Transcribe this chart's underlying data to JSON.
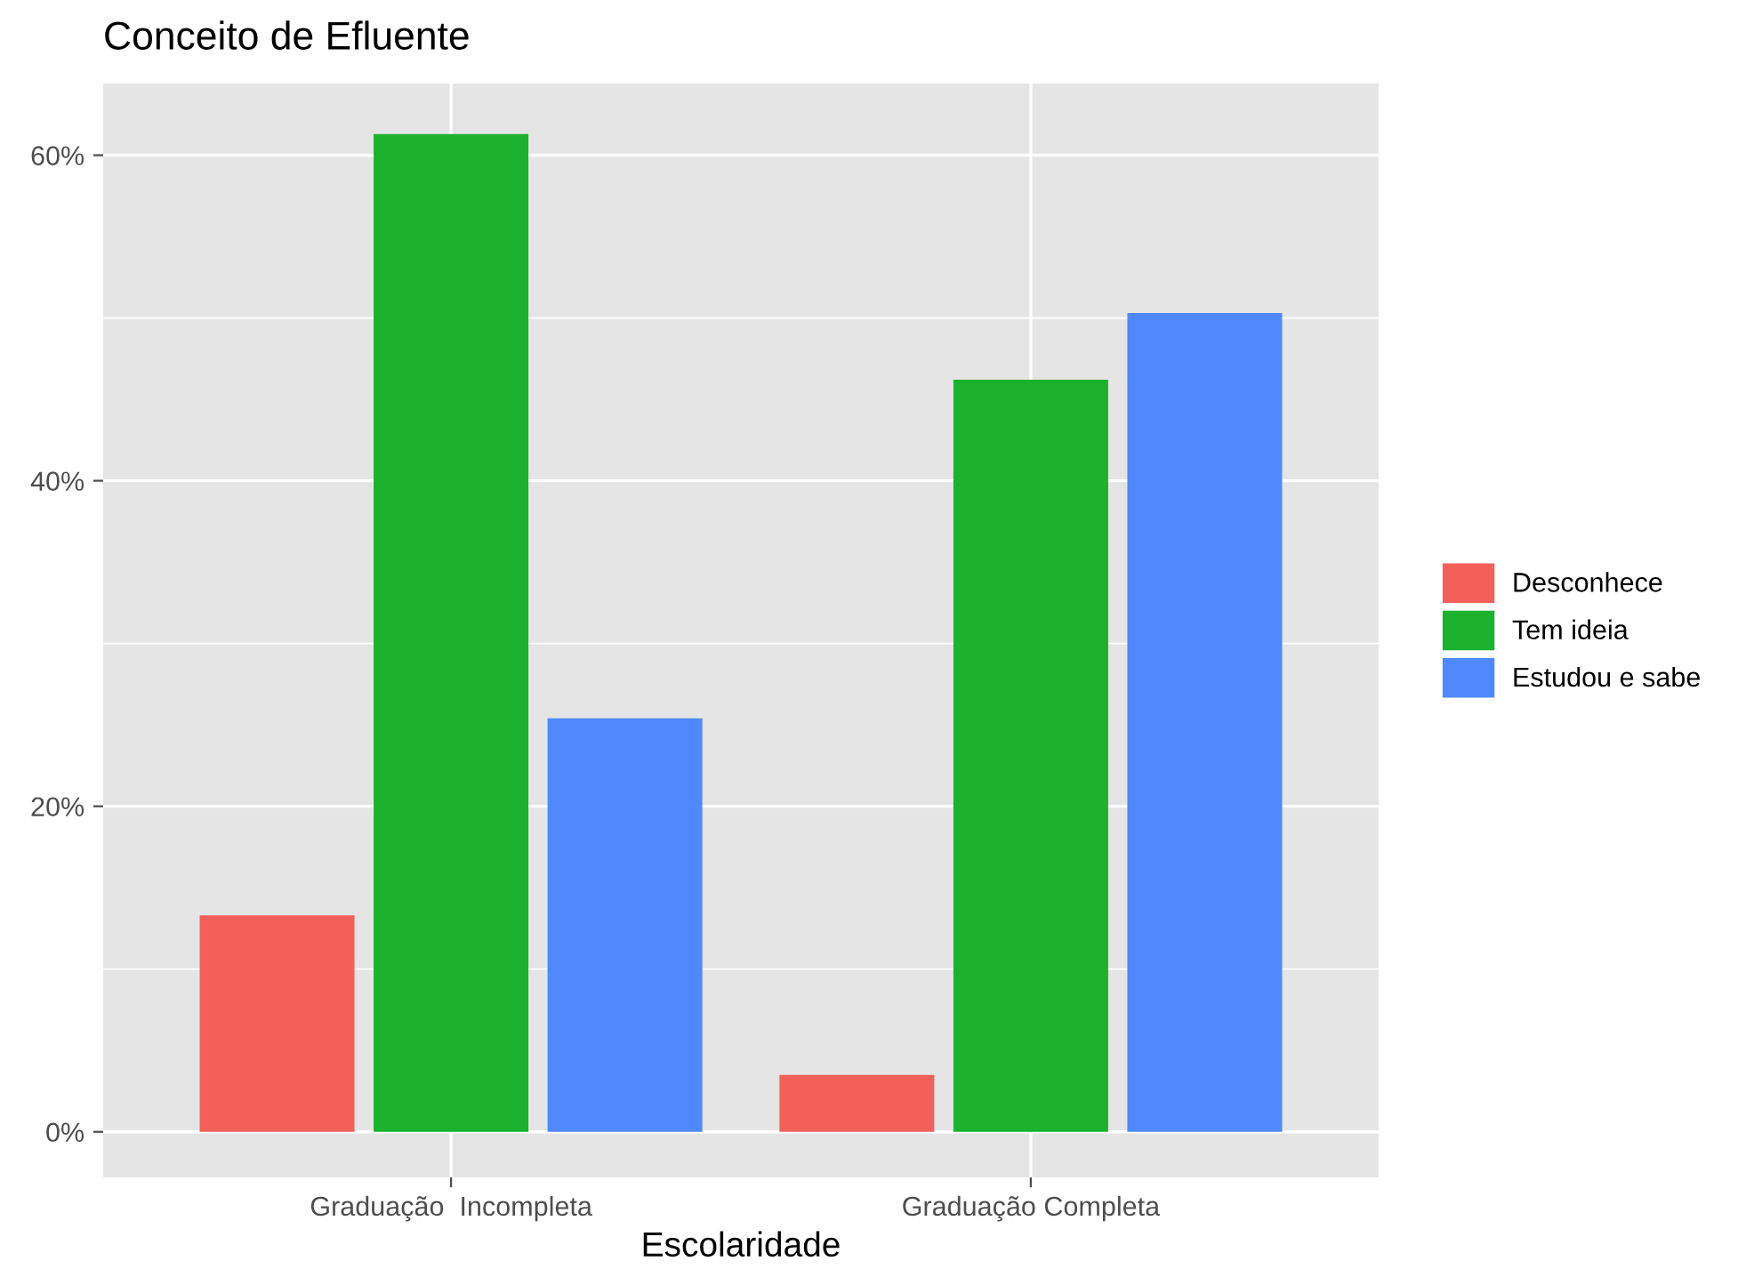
{
  "chart_data": {
    "type": "bar",
    "title": "Conceito de Efluente",
    "xlabel": "Escolaridade",
    "categories": [
      "Graduação  Incompleta",
      "Graduação Completa"
    ],
    "series": [
      {
        "name": "Desconhece",
        "color": "#f3605a",
        "values": [
          13.3,
          3.5
        ]
      },
      {
        "name": "Tem ideia",
        "color": "#1ab22e",
        "values": [
          61.3,
          46.2
        ]
      },
      {
        "name": "Estudou e sabe",
        "color": "#4f88ff",
        "values": [
          25.4,
          50.3
        ]
      }
    ],
    "ylim": [
      -2.8,
      64.4
    ],
    "yticks": [
      {
        "value": 0,
        "label": "0%"
      },
      {
        "value": 20,
        "label": "20%"
      },
      {
        "value": 40,
        "label": "40%"
      },
      {
        "value": 60,
        "label": "60%"
      }
    ],
    "grid": true,
    "legend": "right"
  }
}
